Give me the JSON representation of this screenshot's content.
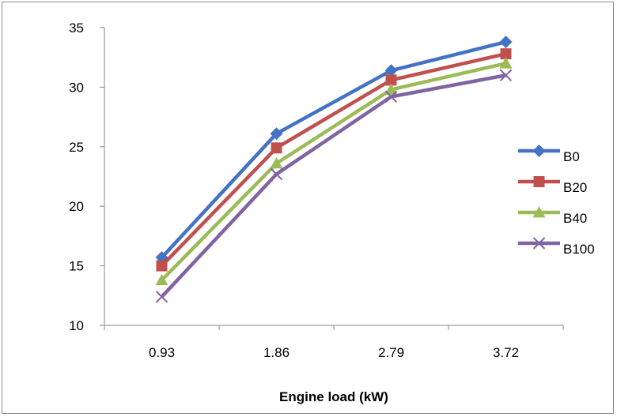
{
  "chart_data": {
    "type": "line",
    "title": "",
    "xlabel": "Engine load (kW)",
    "ylabel": "",
    "categories": [
      "0.93",
      "1.86",
      "2.79",
      "3.72"
    ],
    "ylim": [
      10,
      35
    ],
    "yticks": [
      "10",
      "15",
      "20",
      "25",
      "30",
      "35"
    ],
    "grid": false,
    "legend_position": "right",
    "series": [
      {
        "name": "B0",
        "color": "#4472C4",
        "marker": "diamond",
        "values": [
          15.7,
          26.1,
          31.4,
          33.8
        ]
      },
      {
        "name": "B20",
        "color": "#C0504D",
        "marker": "square",
        "values": [
          15.0,
          24.9,
          30.6,
          32.8
        ]
      },
      {
        "name": "B40",
        "color": "#9BBB59",
        "marker": "triangle",
        "values": [
          13.8,
          23.6,
          29.8,
          32.0
        ]
      },
      {
        "name": "B100",
        "color": "#8064A2",
        "marker": "x",
        "values": [
          12.4,
          22.7,
          29.2,
          31.0
        ]
      }
    ]
  }
}
